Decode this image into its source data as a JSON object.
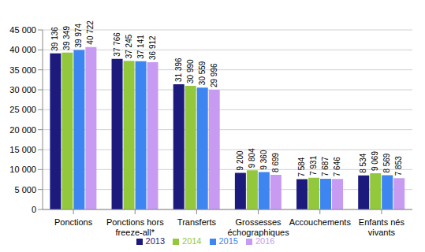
{
  "chart_data": {
    "type": "bar",
    "categories": [
      "Ponctions",
      "Ponctions hors freeze-all*",
      "Transferts",
      "Grossesses échographiques",
      "Accouchements",
      "Enfants nés vivants"
    ],
    "series": [
      {
        "name": "2013",
        "color": "#1c1a7c",
        "values": [
          39136,
          37766,
          31396,
          9200,
          7584,
          8534
        ],
        "value_labels": [
          "39 136",
          "37 766",
          "31 396",
          "9 200",
          "7 584",
          "8 534"
        ]
      },
      {
        "name": "2014",
        "color": "#94c83c",
        "values": [
          39349,
          37245,
          30990,
          9804,
          7931,
          9069
        ],
        "value_labels": [
          "39 349",
          "37 245",
          "30 990",
          "9 804",
          "7 931",
          "9 069"
        ]
      },
      {
        "name": "2015",
        "color": "#3d85f0",
        "values": [
          39974,
          37141,
          30559,
          9360,
          7687,
          8569
        ],
        "value_labels": [
          "39 974",
          "37 141",
          "30 559",
          "9 360",
          "7 687",
          "8 569"
        ]
      },
      {
        "name": "2016",
        "color": "#c89bf2",
        "values": [
          40722,
          36912,
          29996,
          8699,
          7646,
          7853
        ],
        "value_labels": [
          "40 722",
          "36 912",
          "29 996",
          "8 699",
          "7 646",
          "7 853"
        ]
      }
    ],
    "ylim": [
      0,
      45000
    ],
    "yticks": [
      0,
      {
        "value": 5000,
        "label": "5 000"
      },
      {
        "value": 10000,
        "label": "10 000"
      },
      {
        "value": 15000,
        "label": "15 000"
      },
      {
        "value": 20000,
        "label": "20 000"
      },
      {
        "value": 25000,
        "label": "25 000"
      },
      {
        "value": 30000,
        "label": "30 000"
      },
      {
        "value": 35000,
        "label": "35 000"
      },
      {
        "value": 40000,
        "label": "40 000"
      },
      {
        "value": 45000,
        "label": "45 000"
      }
    ],
    "grid": true,
    "legend": "bottom",
    "data_labels": true
  }
}
